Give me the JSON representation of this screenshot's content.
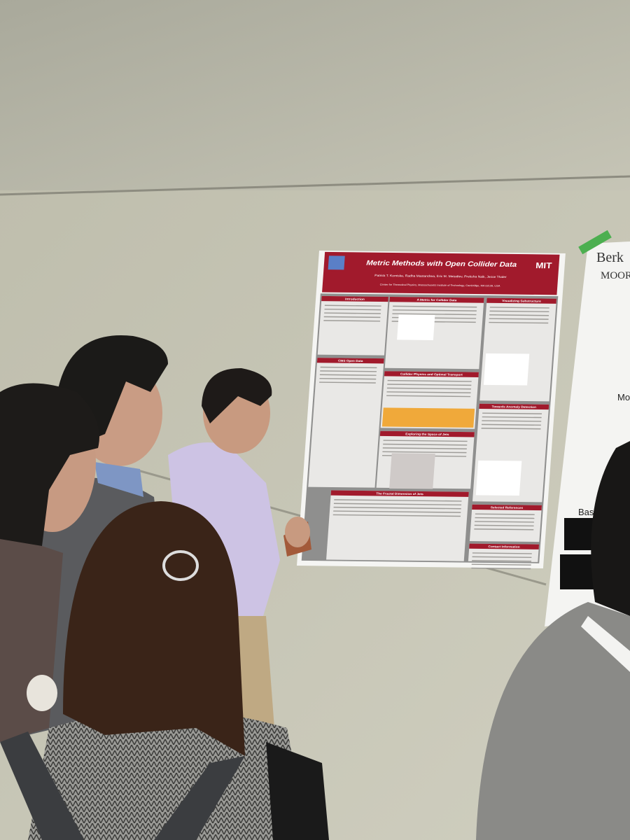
{
  "poster": {
    "title": "Metric Methods with Open Collider Data",
    "authors": "Patrick T. Komiske,  Radha Mastandrea,  Eric M. Metodiev,  Preksha Naik,  Jesse Thaler",
    "affiliation": "Center for Theoretical Physics, Massachusetts Institute of Technology, Cambridge, MA 02139, USA",
    "logo": "MIT",
    "sections": [
      "Introduction",
      "A Metric for Collider Data",
      "Visualizing Substructure",
      "CMS Open Data",
      "Collider Physics and Optimal Transport",
      "Towards Anomaly Detection",
      "Exploring the Space of Jets",
      "The Fractal Dimension of Jets",
      "Selected References",
      "Contact Information"
    ]
  },
  "neighbor_poster": {
    "logo": "Berk",
    "foundation": "MOOR",
    "headings": [
      "Mod",
      "Bas"
    ]
  }
}
